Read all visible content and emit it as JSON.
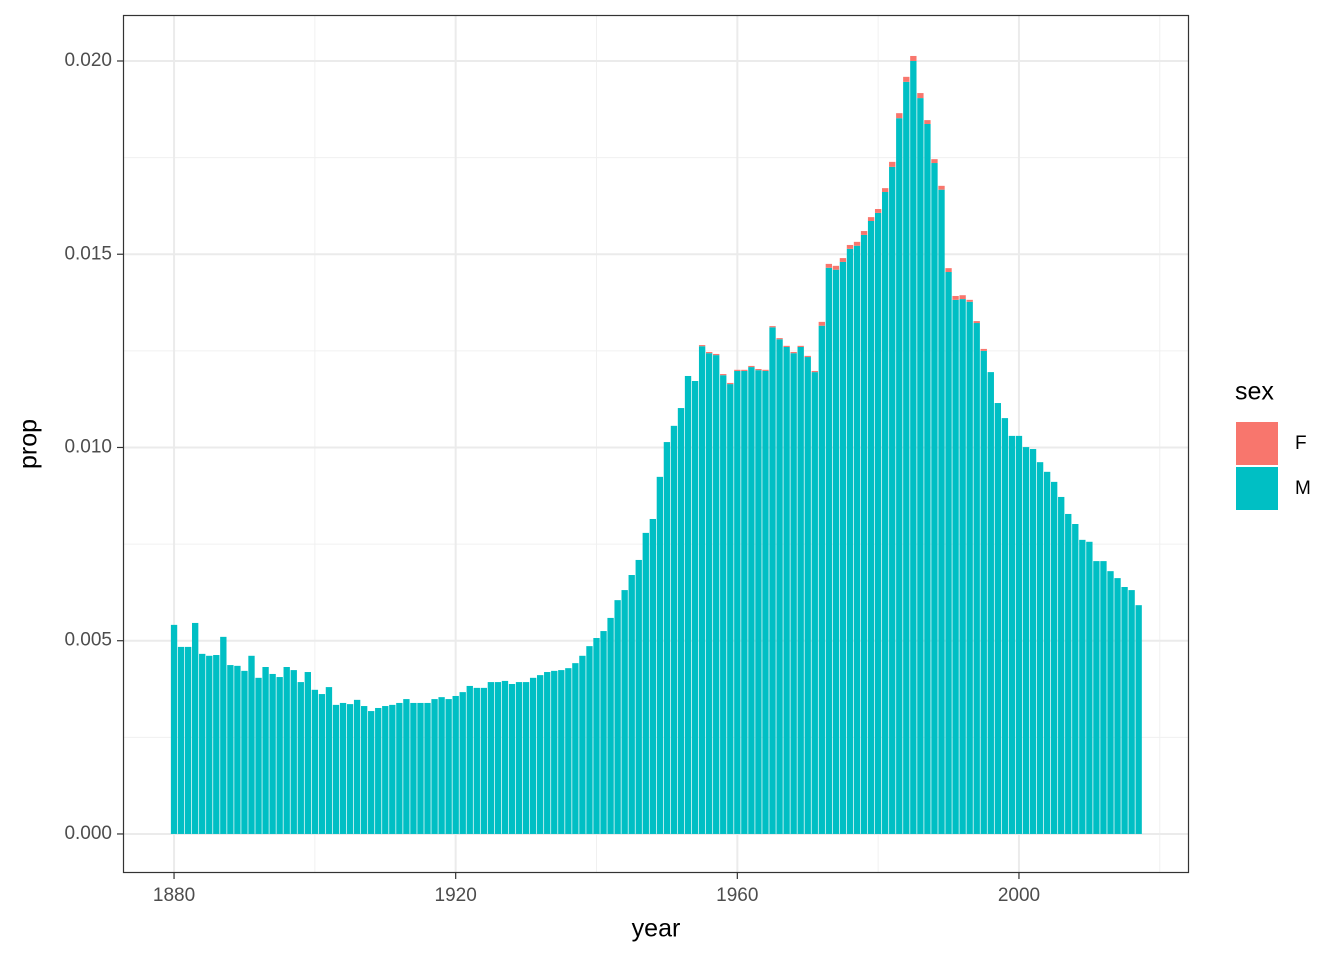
{
  "chart_data": {
    "type": "bar",
    "stacked": true,
    "x_label": "year",
    "y_label": "prop",
    "legend_title": "sex",
    "legend_position": "right",
    "grid": true,
    "xlim": [
      1872.75,
      2024.15
    ],
    "ylim": [
      -0.00101,
      0.02119
    ],
    "xticks": [
      1880,
      1920,
      1960,
      2000
    ],
    "yticks": [
      {
        "value": 0,
        "label": "0.000"
      },
      {
        "value": 0.005,
        "label": "0.005"
      },
      {
        "value": 0.01,
        "label": "0.010"
      },
      {
        "value": 0.015,
        "label": "0.015"
      },
      {
        "value": 0.02,
        "label": "0.020"
      }
    ],
    "x": [
      1880,
      1881,
      1882,
      1883,
      1884,
      1885,
      1886,
      1887,
      1888,
      1889,
      1890,
      1891,
      1892,
      1893,
      1894,
      1895,
      1896,
      1897,
      1898,
      1899,
      1900,
      1901,
      1902,
      1903,
      1904,
      1905,
      1906,
      1907,
      1908,
      1909,
      1910,
      1911,
      1912,
      1913,
      1914,
      1915,
      1916,
      1917,
      1918,
      1919,
      1920,
      1921,
      1922,
      1923,
      1924,
      1925,
      1926,
      1927,
      1928,
      1929,
      1930,
      1931,
      1932,
      1933,
      1934,
      1935,
      1936,
      1937,
      1938,
      1939,
      1940,
      1941,
      1942,
      1943,
      1944,
      1945,
      1946,
      1947,
      1948,
      1949,
      1950,
      1951,
      1952,
      1953,
      1954,
      1955,
      1956,
      1957,
      1958,
      1959,
      1960,
      1961,
      1962,
      1963,
      1964,
      1965,
      1966,
      1967,
      1968,
      1969,
      1970,
      1971,
      1972,
      1973,
      1974,
      1975,
      1976,
      1977,
      1978,
      1979,
      1980,
      1981,
      1982,
      1983,
      1984,
      1985,
      1986,
      1987,
      1988,
      1989,
      1990,
      1991,
      1992,
      1993,
      1994,
      1995,
      1996,
      1997,
      1998,
      1999,
      2000,
      2001,
      2002,
      2003,
      2004,
      2005,
      2006,
      2007,
      2008,
      2009,
      2010,
      2011,
      2012,
      2013,
      2014,
      2015,
      2016,
      2017
    ],
    "series": [
      {
        "name": "M",
        "color": "#00BFC4",
        "values": [
          0.00541,
          0.00484,
          0.00484,
          0.00546,
          0.00466,
          0.00461,
          0.00463,
          0.0051,
          0.00437,
          0.00435,
          0.00422,
          0.00461,
          0.00404,
          0.00432,
          0.00414,
          0.00406,
          0.00432,
          0.00424,
          0.00393,
          0.00419,
          0.00373,
          0.00362,
          0.0038,
          0.00334,
          0.00339,
          0.00336,
          0.00347,
          0.00331,
          0.00318,
          0.00326,
          0.00331,
          0.00334,
          0.00339,
          0.00349,
          0.00339,
          0.00339,
          0.00339,
          0.00349,
          0.00354,
          0.00349,
          0.00357,
          0.00367,
          0.00383,
          0.00378,
          0.00378,
          0.00393,
          0.00393,
          0.00396,
          0.00388,
          0.00393,
          0.00393,
          0.00404,
          0.00411,
          0.00419,
          0.00422,
          0.00424,
          0.00429,
          0.00442,
          0.00461,
          0.00486,
          0.00507,
          0.00525,
          0.00559,
          0.00605,
          0.00631,
          0.0067,
          0.00709,
          0.00779,
          0.00815,
          0.00924,
          0.01014,
          0.01056,
          0.01102,
          0.01185,
          0.01172,
          0.01262,
          0.01244,
          0.01239,
          0.01187,
          0.01164,
          0.01198,
          0.01198,
          0.01208,
          0.012,
          0.01198,
          0.01311,
          0.0128,
          0.0126,
          0.01244,
          0.0126,
          0.01234,
          0.01195,
          0.01315,
          0.01465,
          0.0146,
          0.0148,
          0.01514,
          0.01522,
          0.0155,
          0.01586,
          0.01607,
          0.01661,
          0.01726,
          0.01852,
          0.01946,
          0.02,
          0.01904,
          0.01837,
          0.01736,
          0.01667,
          0.01454,
          0.01382,
          0.01384,
          0.01377,
          0.01322,
          0.0125,
          0.01195,
          0.01115,
          0.01076,
          0.0103,
          0.0103,
          0.01001,
          0.00996,
          0.00962,
          0.00937,
          0.00911,
          0.00872,
          0.00828,
          0.00802,
          0.00761,
          0.00756,
          0.00706,
          0.00706,
          0.0068,
          0.00662,
          0.00639,
          0.00631,
          0.00592
        ]
      },
      {
        "name": "F",
        "color": "#F8766D",
        "values": [
          0,
          0,
          0,
          0,
          0,
          0,
          0,
          0,
          0,
          0,
          0,
          0,
          0,
          0,
          0,
          0,
          0,
          0,
          0,
          0,
          0,
          0,
          0,
          0,
          0,
          0,
          0,
          0,
          0,
          0,
          0,
          0,
          0,
          0,
          0,
          0,
          0,
          0,
          0,
          0,
          0,
          0,
          0,
          0,
          0,
          0,
          0,
          0,
          0,
          0,
          0,
          0,
          0,
          0,
          0,
          0,
          0,
          0,
          0,
          0,
          0,
          0,
          0,
          0,
          0,
          0,
          0,
          0,
          0,
          0,
          0,
          0,
          0,
          0,
          0,
          3e-05,
          3e-05,
          3e-05,
          3e-05,
          3e-05,
          3e-05,
          3e-05,
          3e-05,
          3e-05,
          3e-05,
          3e-05,
          3e-05,
          3e-05,
          3e-05,
          3e-05,
          3e-05,
          3e-05,
          0.0001,
          0.0001,
          0.0001,
          0.0001,
          0.0001,
          0.0001,
          0.0001,
          0.0001,
          0.0001,
          0.0001,
          0.00013,
          0.00013,
          0.00013,
          0.00013,
          0.00013,
          0.0001,
          0.0001,
          0.0001,
          0.0001,
          0.0001,
          0.0001,
          5e-05,
          5e-05,
          5e-05,
          0,
          0,
          0,
          0,
          0,
          0,
          0,
          0,
          0,
          0,
          0,
          0,
          0,
          0,
          0,
          0,
          0,
          0,
          0,
          0,
          0,
          0
        ]
      }
    ]
  }
}
